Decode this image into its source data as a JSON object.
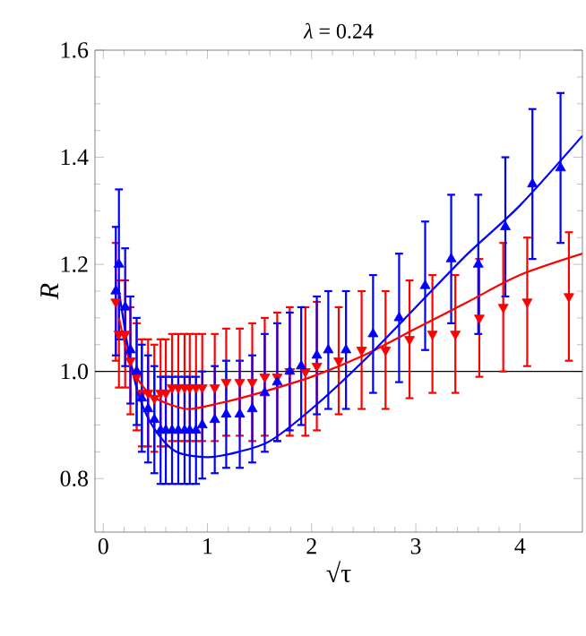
{
  "chart_data": {
    "type": "scatter",
    "title": "*λ* = 0.24",
    "xlabel": "√τ",
    "ylabel": "R",
    "xlim": [
      -0.08,
      4.6
    ],
    "ylim": [
      0.7,
      1.6
    ],
    "xticks": [
      0,
      1,
      2,
      3,
      4
    ],
    "yticks": [
      {
        "value": 0.8,
        "label": "0.8"
      },
      {
        "value": 1.0,
        "label": "1.0"
      },
      {
        "value": 1.2,
        "label": "1.2"
      },
      {
        "value": 1.4,
        "label": "1.4"
      },
      {
        "value": 1.6,
        "label": "1.6"
      }
    ],
    "grid": false,
    "ref_lines": [
      {
        "axis": "y",
        "value": 1.0,
        "color": "#000000"
      }
    ],
    "series": [
      {
        "color": "#ff0000",
        "marker": "triangle-down",
        "x": [
          0.12,
          0.15,
          0.21,
          0.26,
          0.32,
          0.37,
          0.43,
          0.49,
          0.55,
          0.6,
          0.66,
          0.72,
          0.78,
          0.83,
          0.89,
          0.95,
          1.07,
          1.18,
          1.31,
          1.43,
          1.55,
          1.67,
          1.79,
          1.94,
          2.05,
          2.26,
          2.48,
          2.71,
          2.94,
          3.16,
          3.38,
          3.61,
          3.84,
          4.07,
          4.47
        ],
        "values": [
          1.13,
          1.07,
          1.07,
          1.02,
          0.99,
          0.96,
          0.96,
          0.95,
          0.96,
          0.96,
          0.97,
          0.97,
          0.97,
          0.97,
          0.97,
          0.97,
          0.97,
          0.98,
          0.98,
          0.98,
          0.99,
          0.99,
          1.0,
          1.0,
          1.01,
          1.02,
          1.04,
          1.04,
          1.06,
          1.07,
          1.07,
          1.1,
          1.12,
          1.13,
          1.14
        ],
        "errors": [
          0.11,
          0.1,
          0.1,
          0.1,
          0.1,
          0.1,
          0.1,
          0.1,
          0.1,
          0.1,
          0.1,
          0.1,
          0.1,
          0.1,
          0.1,
          0.1,
          0.1,
          0.1,
          0.1,
          0.11,
          0.11,
          0.12,
          0.12,
          0.12,
          0.12,
          0.1,
          0.11,
          0.11,
          0.11,
          0.11,
          0.11,
          0.11,
          0.12,
          0.12,
          0.12
        ]
      },
      {
        "color": "#0000ff",
        "marker": "triangle",
        "x": [
          0.12,
          0.15,
          0.21,
          0.26,
          0.32,
          0.37,
          0.43,
          0.49,
          0.55,
          0.6,
          0.66,
          0.72,
          0.78,
          0.83,
          0.89,
          0.95,
          1.07,
          1.18,
          1.31,
          1.43,
          1.55,
          1.67,
          1.79,
          1.9,
          2.05,
          2.16,
          2.33,
          2.59,
          2.84,
          3.09,
          3.34,
          3.6,
          3.86,
          4.12,
          4.39
        ],
        "values": [
          1.15,
          1.2,
          1.12,
          1.04,
          1.0,
          0.95,
          0.93,
          0.91,
          0.89,
          0.89,
          0.89,
          0.89,
          0.89,
          0.89,
          0.89,
          0.9,
          0.91,
          0.92,
          0.92,
          0.93,
          0.96,
          0.98,
          1.0,
          1.01,
          1.03,
          1.04,
          1.04,
          1.07,
          1.1,
          1.16,
          1.21,
          1.2,
          1.27,
          1.35,
          1.38
        ],
        "errors": [
          0.12,
          0.14,
          0.11,
          0.1,
          0.1,
          0.1,
          0.1,
          0.1,
          0.1,
          0.1,
          0.1,
          0.1,
          0.1,
          0.1,
          0.1,
          0.1,
          0.1,
          0.1,
          0.1,
          0.1,
          0.11,
          0.11,
          0.11,
          0.11,
          0.11,
          0.11,
          0.11,
          0.11,
          0.12,
          0.12,
          0.12,
          0.13,
          0.13,
          0.14,
          0.14
        ]
      },
      {
        "type": "line",
        "color": "#ff0000",
        "marker": "none",
        "x": [
          0.15,
          0.25,
          0.35,
          0.5,
          0.8,
          1.1,
          1.5,
          2.0,
          2.5,
          3.0,
          3.5,
          4.0,
          4.6
        ],
        "values": [
          1.1,
          1.02,
          0.98,
          0.95,
          0.93,
          0.94,
          0.96,
          0.99,
          1.03,
          1.08,
          1.13,
          1.18,
          1.22
        ]
      },
      {
        "type": "line",
        "color": "#0000ff",
        "marker": "none",
        "x": [
          0.15,
          0.25,
          0.35,
          0.5,
          0.7,
          1.0,
          1.3,
          1.6,
          2.0,
          2.5,
          3.0,
          3.5,
          4.0,
          4.6
        ],
        "values": [
          1.15,
          1.03,
          0.95,
          0.89,
          0.85,
          0.84,
          0.85,
          0.87,
          0.93,
          1.02,
          1.12,
          1.22,
          1.31,
          1.44
        ]
      }
    ]
  }
}
